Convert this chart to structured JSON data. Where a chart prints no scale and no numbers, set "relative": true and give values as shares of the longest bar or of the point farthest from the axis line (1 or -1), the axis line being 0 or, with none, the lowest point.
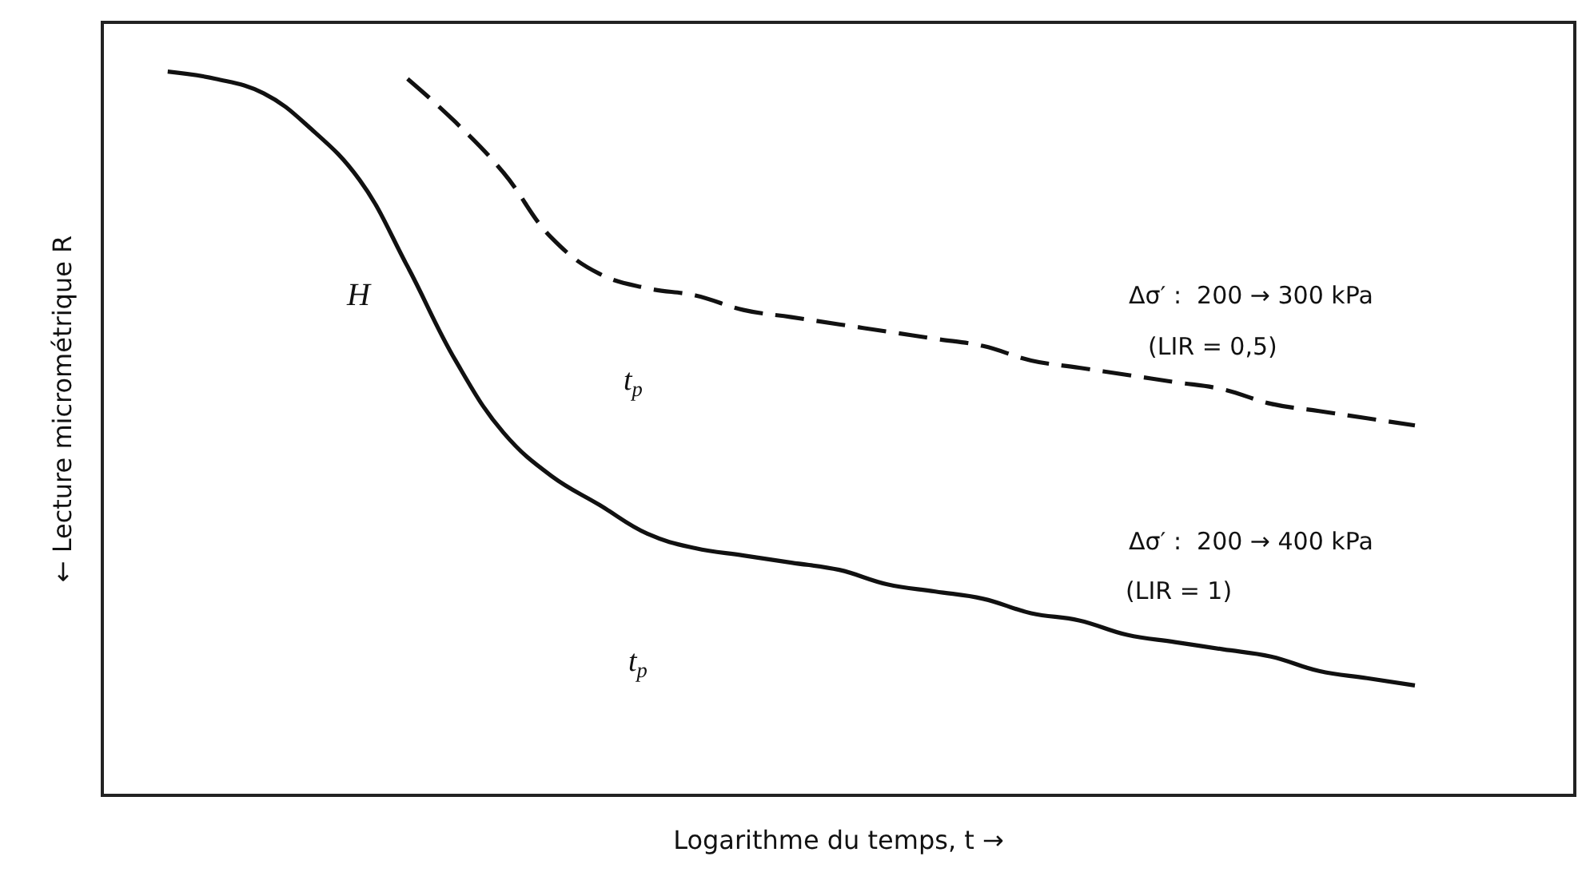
{
  "chart_data": {
    "type": "line",
    "relative": true,
    "xlabel": "Logarithme du temps, t →",
    "ylabel": "← Lecture micrométrique R",
    "categories": [
      null,
      null,
      null,
      null,
      null,
      null,
      null,
      null,
      null,
      null,
      null,
      null,
      null,
      null,
      null,
      null,
      null,
      null,
      null,
      null,
      null,
      null,
      null,
      null,
      null,
      null,
      null
    ],
    "series": [
      {
        "color": "#111111",
        "line_style": "solid",
        "values": [
          1.0,
          0.99,
          0.97,
          0.92,
          0.85,
          0.73,
          0.6,
          0.5,
          0.44,
          0.4,
          0.36,
          0.34,
          0.33,
          0.32,
          0.31,
          0.29,
          0.28,
          0.27,
          0.25,
          0.24,
          0.22,
          0.21,
          0.2,
          0.19,
          0.17,
          0.16,
          0.15
        ]
      },
      {
        "color": "#111111",
        "line_style": "dashed",
        "values": [
          null,
          null,
          null,
          null,
          null,
          0.99,
          0.93,
          0.86,
          0.77,
          0.72,
          0.7,
          0.69,
          0.67,
          0.66,
          0.65,
          0.64,
          0.63,
          0.62,
          0.6,
          0.59,
          0.58,
          0.57,
          0.56,
          0.54,
          0.53,
          0.52,
          0.51
        ]
      }
    ],
    "annotations": [
      "H",
      "t$_{p}$",
      "t$_{p}$",
      "Δσ′ :  200 → 300 kPa",
      "(LIR = 0,5)",
      "Δσ′ :  200 → 400 kPa",
      "(LIR = 1)"
    ],
    "grid": false
  }
}
